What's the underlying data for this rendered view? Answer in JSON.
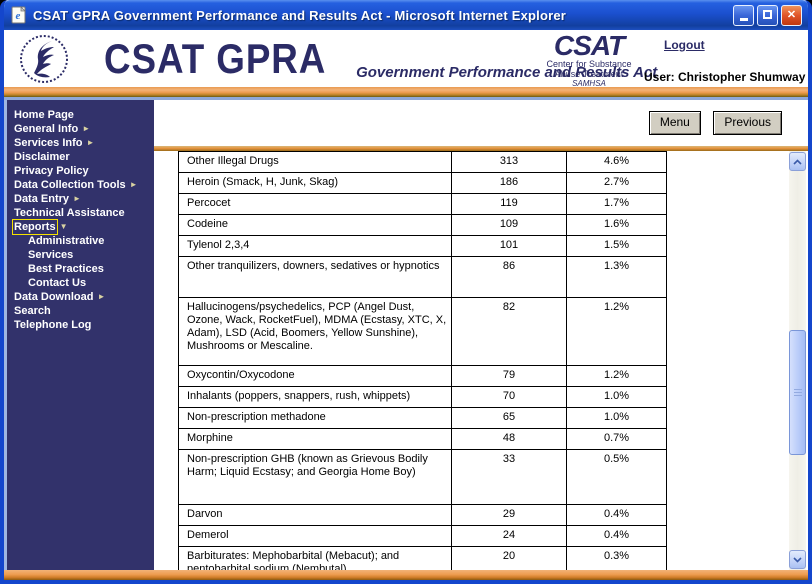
{
  "window": {
    "title": "CSAT GPRA Government Performance and Results Act - Microsoft Internet Explorer"
  },
  "header": {
    "brand_title": "CSAT GPRA",
    "brand_tagline": "Government Performance and Results Act",
    "csat_logo": {
      "acronym": "CSAT",
      "line1": "Center for Substance",
      "line2": "Abuse Treatment",
      "line3": "SAMHSA"
    },
    "logout_label": "Logout",
    "user_label": "User: Christopher Shumway"
  },
  "sidebar": {
    "items": [
      {
        "label": "Home Page"
      },
      {
        "label": "General Info",
        "arrow": "right"
      },
      {
        "label": "Services Info",
        "arrow": "right"
      },
      {
        "label": "Disclaimer"
      },
      {
        "label": "Privacy Policy"
      },
      {
        "label": "Data Collection Tools",
        "arrow": "right"
      },
      {
        "label": "Data Entry",
        "arrow": "right"
      },
      {
        "label": "Technical Assistance"
      },
      {
        "label": "Reports",
        "arrow": "down",
        "selected": true
      },
      {
        "label": "Administrative",
        "indent": true
      },
      {
        "label": "Services",
        "indent": true
      },
      {
        "label": "Best Practices",
        "indent": true
      },
      {
        "label": "Contact Us",
        "indent": true
      },
      {
        "label": "Data Download",
        "arrow": "right"
      },
      {
        "label": "Search"
      },
      {
        "label": "Telephone Log"
      }
    ]
  },
  "toolbar": {
    "menu_label": "Menu",
    "previous_label": "Previous"
  },
  "table": {
    "rows": [
      {
        "name": "Other Illegal Drugs",
        "count": "313",
        "percent": "4.6%"
      },
      {
        "name": "Heroin (Smack, H, Junk, Skag)",
        "count": "186",
        "percent": "2.7%"
      },
      {
        "name": "Percocet",
        "count": "119",
        "percent": "1.7%"
      },
      {
        "name": "Codeine",
        "count": "109",
        "percent": "1.6%"
      },
      {
        "name": "Tylenol 2,3,4",
        "count": "101",
        "percent": "1.5%"
      },
      {
        "name": "Other tranquilizers, downers, sedatives or hypnotics",
        "count": "86",
        "percent": "1.3%"
      },
      {
        "name": "Hallucinogens/psychedelics, PCP (Angel Dust, Ozone, Wack, RocketFuel), MDMA (Ecstasy, XTC, X, Adam), LSD (Acid, Boomers, Yellow Sunshine), Mushrooms or Mescaline.",
        "count": "82",
        "percent": "1.2%"
      },
      {
        "name": "Oxycontin/Oxycodone",
        "count": "79",
        "percent": "1.2%"
      },
      {
        "name": "Inhalants (poppers, snappers, rush, whippets)",
        "count": "70",
        "percent": "1.0%"
      },
      {
        "name": "Non-prescription methadone",
        "count": "65",
        "percent": "1.0%"
      },
      {
        "name": "Morphine",
        "count": "48",
        "percent": "0.7%"
      },
      {
        "name": "Non-prescription GHB (known as Grievous Bodily Harm; Liquid Ecstasy; and Georgia Home Boy)",
        "count": "33",
        "percent": "0.5%"
      },
      {
        "name": "Darvon",
        "count": "29",
        "percent": "0.4%"
      },
      {
        "name": "Demerol",
        "count": "24",
        "percent": "0.4%"
      },
      {
        "name": "Barbiturates: Mephobarbital (Mebacut); and pentobarbital sodium (Nembutal)",
        "count": "20",
        "percent": "0.3%"
      }
    ]
  },
  "colors": {
    "titlebar_blue": "#1b50cf",
    "frame_blue": "#1446cc",
    "sidebar_navy": "#32326b",
    "accent_orange": "#e8953f",
    "highlight_yellow": "#f5e100",
    "brand_navy": "#2b2b66"
  }
}
